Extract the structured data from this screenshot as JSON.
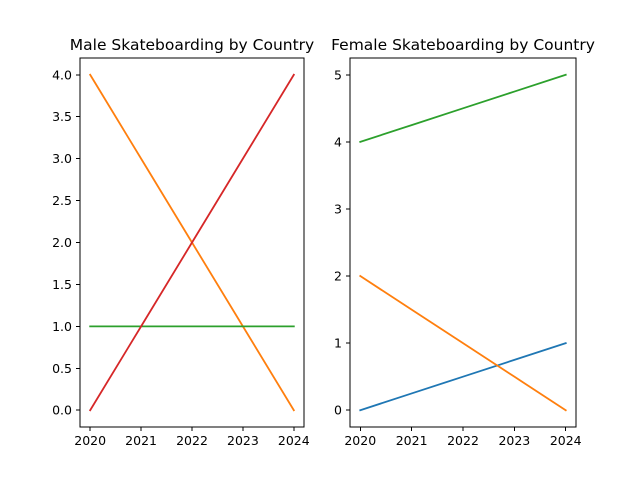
{
  "chart_data": [
    {
      "type": "line",
      "title": "Male Skateboarding by Country",
      "xlabel": "",
      "ylabel": "",
      "x": [
        2020,
        2021,
        2022,
        2023,
        2024
      ],
      "xlim": [
        2019.8,
        2024.2
      ],
      "ylim": [
        -0.2,
        4.2
      ],
      "xticks": [
        "2020",
        "2021",
        "2022",
        "2023",
        "2024"
      ],
      "yticks": [
        "0.0",
        "0.5",
        "1.0",
        "1.5",
        "2.0",
        "2.5",
        "3.0",
        "3.5",
        "4.0"
      ],
      "grid": false,
      "legend": "none",
      "series": [
        {
          "color": "#ff7f0e",
          "values": [
            4,
            3,
            2,
            1,
            0
          ]
        },
        {
          "color": "#2ca02c",
          "values": [
            1,
            1,
            1,
            1,
            1
          ]
        },
        {
          "color": "#d62728",
          "values": [
            0,
            1,
            2,
            3,
            4
          ]
        }
      ]
    },
    {
      "type": "line",
      "title": "Female Skateboarding by Country",
      "xlabel": "",
      "ylabel": "",
      "x": [
        2020,
        2021,
        2022,
        2023,
        2024
      ],
      "xlim": [
        2019.8,
        2024.2
      ],
      "ylim": [
        -0.25,
        5.25
      ],
      "xticks": [
        "2020",
        "2021",
        "2022",
        "2023",
        "2024"
      ],
      "yticks": [
        "0",
        "1",
        "2",
        "3",
        "4",
        "5"
      ],
      "grid": false,
      "legend": "none",
      "series": [
        {
          "color": "#1f77b4",
          "values": [
            0,
            0.25,
            0.5,
            0.75,
            1
          ]
        },
        {
          "color": "#ff7f0e",
          "values": [
            2,
            1.5,
            1,
            0.5,
            0
          ]
        },
        {
          "color": "#2ca02c",
          "values": [
            4,
            4.25,
            4.5,
            4.75,
            5
          ]
        }
      ]
    }
  ]
}
